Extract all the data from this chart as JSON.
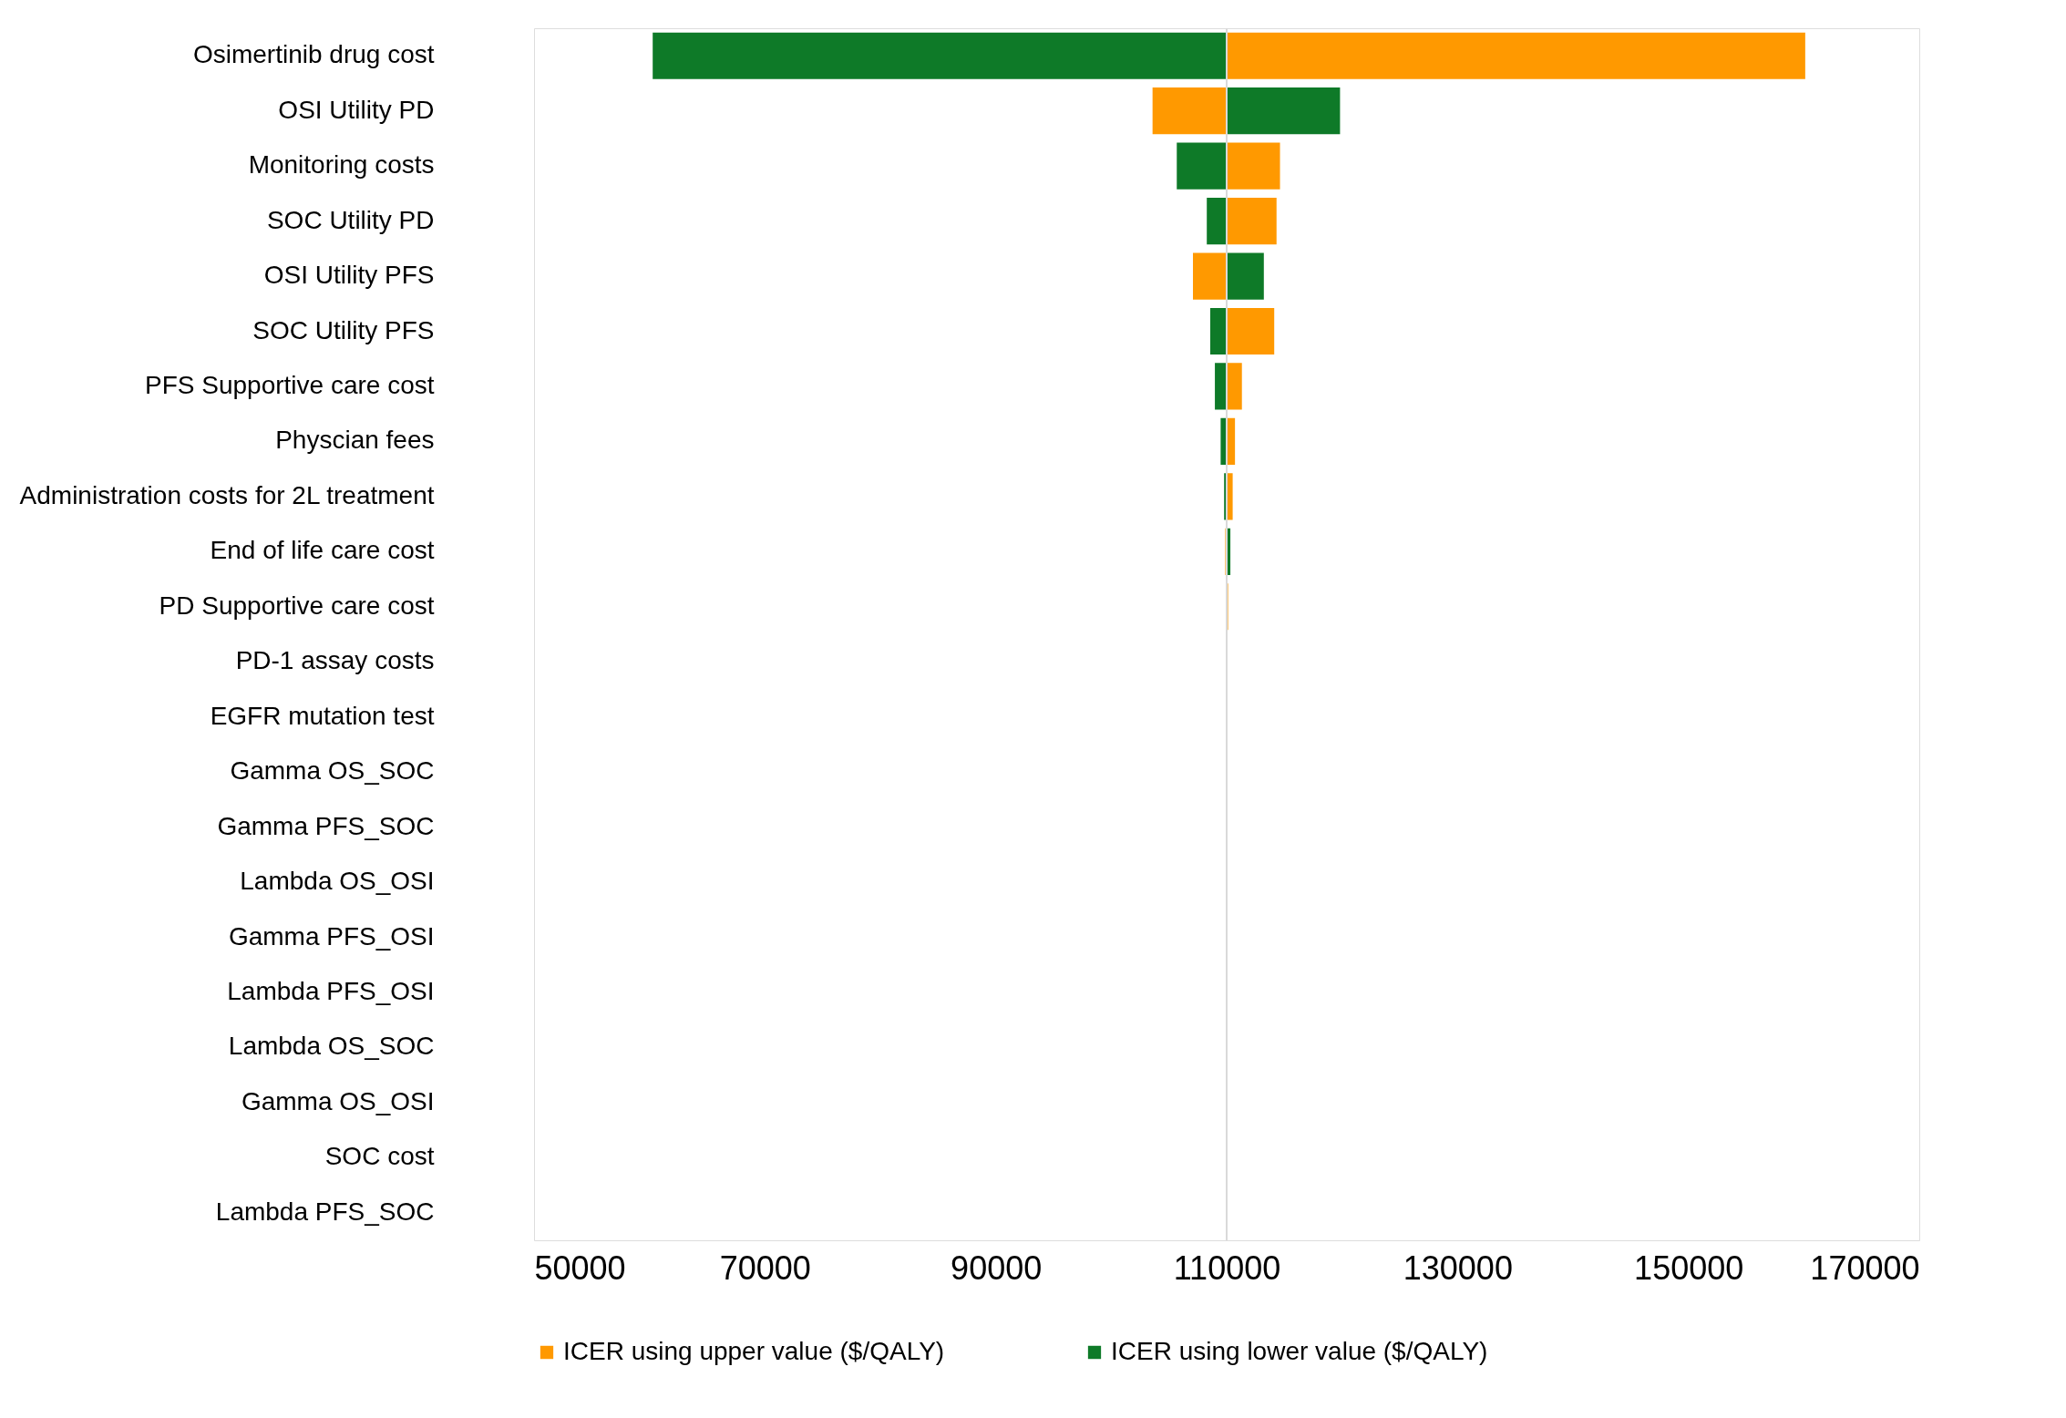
{
  "chart_data": {
    "type": "bar",
    "orientation": "horizontal",
    "categories": [
      "Osimertinib drug cost",
      "OSI Utility PD",
      "Monitoring costs",
      "SOC Utility PD",
      "OSI Utility PFS",
      "SOC Utility PFS",
      "PFS Supportive care cost",
      "Physcian fees",
      "Administration costs for 2L treatment",
      "End of life care cost",
      "PD Supportive care cost",
      "PD-1 assay costs",
      "EGFR mutation test",
      "Gamma OS_SOC",
      "Gamma PFS_SOC",
      "Lambda OS_OSI",
      "Gamma PFS_OSI",
      "Lambda PFS_OSI",
      "Lambda OS_SOC",
      "Gamma OS_OSI",
      "SOC cost",
      "Lambda PFS_SOC"
    ],
    "series": [
      {
        "name": "ICER using upper value ($/QALY)",
        "color": "#ff9900",
        "base": [
          110000,
          110000,
          110000,
          110000,
          110000,
          110000,
          110000,
          110000,
          110000,
          110000,
          110000,
          null,
          null,
          null,
          null,
          null,
          null,
          null,
          null,
          null,
          null,
          null
        ],
        "values": [
          50200,
          -6500,
          4700,
          4400,
          -3000,
          4200,
          1400,
          800,
          600,
          -200,
          200,
          null,
          null,
          null,
          null,
          null,
          null,
          null,
          null,
          null,
          null,
          null
        ]
      },
      {
        "name": "ICER using lower value ($/QALY)",
        "color": "#0e7a28",
        "base": [
          110000,
          110000,
          110000,
          110000,
          110000,
          110000,
          110000,
          110000,
          110000,
          110000,
          null,
          null,
          null,
          null,
          null,
          null,
          null,
          null,
          null,
          null,
          null,
          null
        ],
        "values": [
          -49800,
          9900,
          -4400,
          -1800,
          3300,
          -1500,
          -1100,
          -600,
          -300,
          400,
          null,
          null,
          null,
          null,
          null,
          null,
          null,
          null,
          null,
          null,
          null,
          null
        ]
      }
    ],
    "xlim": [
      50000,
      170000
    ],
    "xticks": [
      50000,
      70000,
      90000,
      110000,
      130000,
      150000,
      170000
    ],
    "ref_lines": [
      {
        "axis": "x",
        "value": 110000,
        "color": "#d9d9d9"
      }
    ],
    "grid": false,
    "legend": "bottom"
  }
}
